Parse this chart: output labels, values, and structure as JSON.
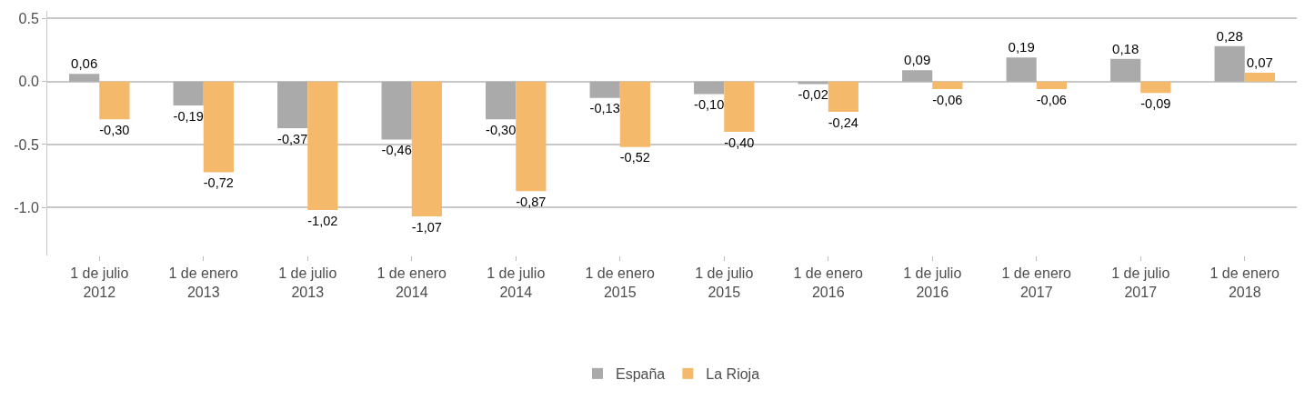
{
  "chart_data": {
    "type": "bar",
    "categories": [
      "1 de julio\n2012",
      "1 de enero\n2013",
      "1 de julio\n2013",
      "1 de enero\n2014",
      "1 de julio\n2014",
      "1 de enero\n2015",
      "1 de julio\n2015",
      "1 de enero\n2016",
      "1 de julio\n2016",
      "1 de enero\n2017",
      "1 de julio\n2017",
      "1 de enero\n2018"
    ],
    "series": [
      {
        "name": "España",
        "color": "#aaaaaa",
        "values": [
          0.06,
          -0.19,
          -0.37,
          -0.46,
          -0.3,
          -0.13,
          -0.1,
          -0.02,
          0.09,
          0.19,
          0.18,
          0.28
        ],
        "value_labels": [
          "0,06",
          "-0,19",
          "-0,37",
          "-0,46",
          "-0,30",
          "-0,13",
          "-0,10",
          "-0,02",
          "0,09",
          "0,19",
          "0,18",
          "0,28"
        ]
      },
      {
        "name": "La Rioja",
        "color": "#f5b96b",
        "values": [
          -0.3,
          -0.72,
          -1.02,
          -1.07,
          -0.87,
          -0.52,
          -0.4,
          -0.24,
          -0.06,
          -0.06,
          -0.09,
          0.07
        ],
        "value_labels": [
          "-0,30",
          "-0,72",
          "-1,02",
          "-1,07",
          "-0,87",
          "-0,52",
          "-0,40",
          "-0,24",
          "-0,06",
          "-0,06",
          "-0,09",
          "0,07"
        ]
      }
    ],
    "ylim": [
      -1.38,
      0.56
    ],
    "yticks": [
      {
        "value": 0.5,
        "label": "0.5"
      },
      {
        "value": 0.0,
        "label": "0.0"
      },
      {
        "value": -0.5,
        "label": "-0.5"
      },
      {
        "value": -1.0,
        "label": "-1.0"
      }
    ],
    "grid": "y",
    "legend": "bottom"
  }
}
